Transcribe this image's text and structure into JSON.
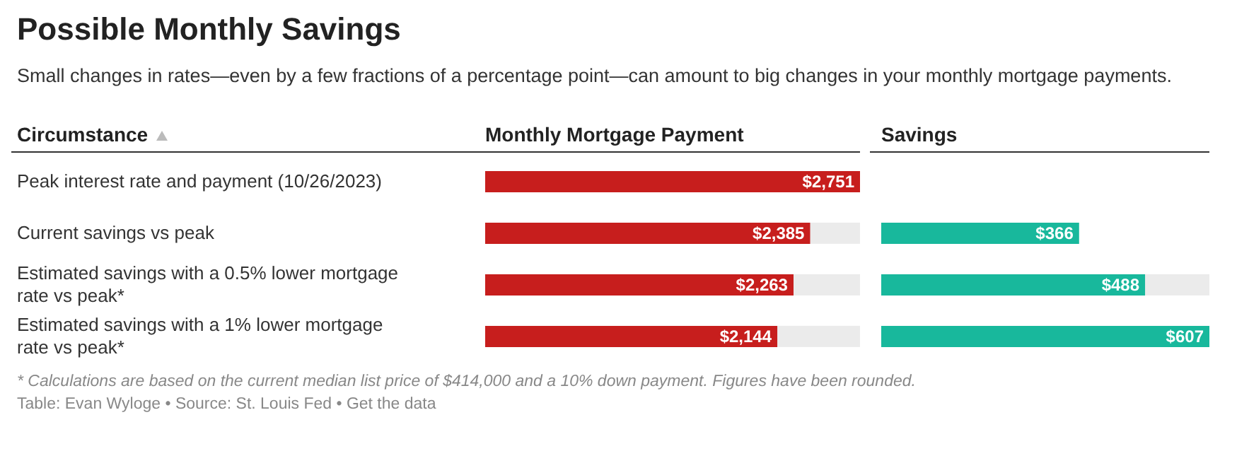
{
  "chart_data": [
    {
      "type": "bar",
      "orientation": "horizontal",
      "title": "Possible Monthly Savings",
      "subtitle": "Small changes in rates—even by a few fractions of a percentage point—can amount to big changes in your monthly mortgage payments.",
      "ylabel": "Circumstance",
      "xlabel": "Monthly Mortgage Payment",
      "categories": [
        "Peak interest rate and payment (10/26/2023)",
        "Current savings vs peak",
        "Estimated savings with a 0.5% lower mortgage rate vs peak*",
        "Estimated savings with a 1% lower mortgage rate vs peak*"
      ],
      "values": [
        2751,
        2385,
        2263,
        2144
      ],
      "value_labels": [
        "$2,751",
        "$2,385",
        "$2,263",
        "$2,144"
      ],
      "color": "#c71e1d",
      "annotations": [
        "* Calculations are based on the current median list price of $414,000 and a 10% down payment. Figures have been rounded.",
        "Table: Evan Wyloge • Source: St. Louis Fed • Get the data"
      ]
    },
    {
      "type": "bar",
      "orientation": "horizontal",
      "xlabel": "Savings",
      "values": [
        null,
        366,
        488,
        607
      ],
      "value_labels": [
        null,
        "$366",
        "$488",
        "$607"
      ],
      "color": "#18b89c",
      "tick_labels": false
    }
  ]
}
